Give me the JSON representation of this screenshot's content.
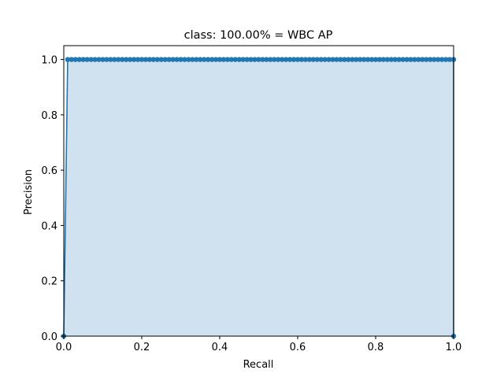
{
  "chart_data": {
    "type": "area",
    "title": "class: 100.00% = WBC AP",
    "xlabel": "Recall",
    "ylabel": "Precision",
    "xlim": [
      0.0,
      1.0
    ],
    "ylim": [
      0.0,
      1.05
    ],
    "xticks": [
      "0.0",
      "0.2",
      "0.4",
      "0.6",
      "0.8",
      "1.0"
    ],
    "xtick_values": [
      0.0,
      0.2,
      0.4,
      0.6,
      0.8,
      1.0
    ],
    "yticks": [
      "0.0",
      "0.2",
      "0.4",
      "0.6",
      "0.8",
      "1.0"
    ],
    "ytick_values": [
      0.0,
      0.2,
      0.4,
      0.6,
      0.8,
      1.0
    ],
    "grid": false,
    "legend": "none",
    "line_color": "#1f77b4",
    "fill_color": "#d0e2f0",
    "series": [
      {
        "x": [
          0.0,
          0.01,
          0.02,
          0.03,
          0.04,
          0.05,
          0.06,
          0.07,
          0.08,
          0.09,
          0.1,
          0.11,
          0.12,
          0.13,
          0.14,
          0.15,
          0.16,
          0.17,
          0.18,
          0.19,
          0.2,
          0.21,
          0.22,
          0.23,
          0.24,
          0.25,
          0.26,
          0.27,
          0.28,
          0.29,
          0.3,
          0.31,
          0.32,
          0.33,
          0.34,
          0.35,
          0.36,
          0.37,
          0.38,
          0.39,
          0.4,
          0.41,
          0.42,
          0.43,
          0.44,
          0.45,
          0.46,
          0.47,
          0.48,
          0.49,
          0.5,
          0.51,
          0.52,
          0.53,
          0.54,
          0.55,
          0.56,
          0.57,
          0.58,
          0.59,
          0.6,
          0.61,
          0.62,
          0.63,
          0.64,
          0.65,
          0.66,
          0.67,
          0.68,
          0.69,
          0.7,
          0.71,
          0.72,
          0.73,
          0.74,
          0.75,
          0.76,
          0.77,
          0.78,
          0.79,
          0.8,
          0.81,
          0.82,
          0.83,
          0.84,
          0.85,
          0.86,
          0.87,
          0.88,
          0.89,
          0.9,
          0.91,
          0.92,
          0.93,
          0.94,
          0.95,
          0.96,
          0.97,
          0.98,
          0.99,
          1.0,
          1.0
        ],
        "y": [
          0.0,
          1.0,
          1.0,
          1.0,
          1.0,
          1.0,
          1.0,
          1.0,
          1.0,
          1.0,
          1.0,
          1.0,
          1.0,
          1.0,
          1.0,
          1.0,
          1.0,
          1.0,
          1.0,
          1.0,
          1.0,
          1.0,
          1.0,
          1.0,
          1.0,
          1.0,
          1.0,
          1.0,
          1.0,
          1.0,
          1.0,
          1.0,
          1.0,
          1.0,
          1.0,
          1.0,
          1.0,
          1.0,
          1.0,
          1.0,
          1.0,
          1.0,
          1.0,
          1.0,
          1.0,
          1.0,
          1.0,
          1.0,
          1.0,
          1.0,
          1.0,
          1.0,
          1.0,
          1.0,
          1.0,
          1.0,
          1.0,
          1.0,
          1.0,
          1.0,
          1.0,
          1.0,
          1.0,
          1.0,
          1.0,
          1.0,
          1.0,
          1.0,
          1.0,
          1.0,
          1.0,
          1.0,
          1.0,
          1.0,
          1.0,
          1.0,
          1.0,
          1.0,
          1.0,
          1.0,
          1.0,
          1.0,
          1.0,
          1.0,
          1.0,
          1.0,
          1.0,
          1.0,
          1.0,
          1.0,
          1.0,
          1.0,
          1.0,
          1.0,
          1.0,
          1.0,
          1.0,
          1.0,
          1.0,
          1.0,
          1.0,
          0.0
        ]
      }
    ]
  }
}
